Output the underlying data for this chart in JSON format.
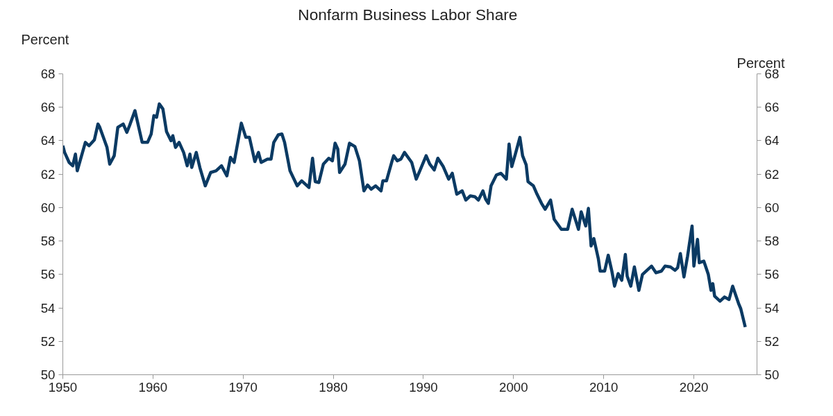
{
  "chart_data": {
    "type": "line",
    "title": "Nonfarm  Business Labor Share",
    "ylabel": "Percent",
    "y2label": "Percent",
    "xlim": [
      1950,
      2027
    ],
    "xticks": [
      1950,
      1960,
      1970,
      1980,
      1990,
      2000,
      2010,
      2020
    ],
    "ylim": [
      50,
      68
    ],
    "yticks": [
      50,
      52,
      54,
      56,
      58,
      60,
      62,
      64,
      66,
      68
    ],
    "y2lim": [
      50,
      68
    ],
    "y2ticks": [
      50,
      52,
      54,
      56,
      58,
      60,
      62,
      64,
      66,
      68
    ],
    "grid": false,
    "marker": "none",
    "line_style": "solid",
    "series": [
      {
        "color": "#0b3a63",
        "x": [
          1950.0,
          1950.2,
          1950.7,
          1951.1,
          1951.4,
          1951.6,
          1952.5,
          1952.9,
          1953.5,
          1953.9,
          1954.1,
          1954.9,
          1955.2,
          1955.7,
          1956.1,
          1956.7,
          1957.1,
          1957.4,
          1958.0,
          1958.8,
          1959.4,
          1959.8,
          1960.1,
          1960.4,
          1960.7,
          1961.1,
          1961.5,
          1962.0,
          1962.2,
          1962.5,
          1962.9,
          1963.4,
          1963.8,
          1964.1,
          1964.3,
          1964.8,
          1965.2,
          1965.8,
          1966.4,
          1967.0,
          1967.6,
          1968.2,
          1968.6,
          1969.0,
          1969.8,
          1970.3,
          1970.7,
          1971.3,
          1971.7,
          1972.0,
          1972.7,
          1973.1,
          1973.4,
          1973.9,
          1974.3,
          1974.6,
          1975.2,
          1976.0,
          1976.5,
          1977.3,
          1977.7,
          1978.0,
          1978.4,
          1978.9,
          1979.5,
          1979.9,
          1980.2,
          1980.5,
          1980.7,
          1981.3,
          1981.8,
          1982.4,
          1982.9,
          1983.4,
          1983.8,
          1984.2,
          1984.7,
          1985.3,
          1985.5,
          1985.9,
          1986.5,
          1986.7,
          1987.1,
          1987.5,
          1987.9,
          1988.7,
          1989.2,
          1989.6,
          1990.3,
          1990.7,
          1991.2,
          1991.6,
          1992.2,
          1992.8,
          1993.2,
          1993.7,
          1994.3,
          1994.7,
          1995.2,
          1995.7,
          1996.1,
          1996.6,
          1996.9,
          1997.2,
          1997.5,
          1998.1,
          1998.6,
          1999.2,
          1999.5,
          1999.8,
          2000.2,
          2000.7,
          2001.0,
          2001.4,
          2001.6,
          2002.2,
          2002.6,
          2003.1,
          2003.5,
          2004.1,
          2004.5,
          2005.3,
          2006.0,
          2006.5,
          2007.2,
          2007.5,
          2008.0,
          2008.3,
          2008.6,
          2008.9,
          2009.4,
          2009.6,
          2010.1,
          2010.5,
          2010.9,
          2011.2,
          2011.6,
          2012.0,
          2012.4,
          2012.6,
          2013.0,
          2013.4,
          2013.9,
          2014.3,
          2014.9,
          2015.3,
          2015.8,
          2016.4,
          2016.8,
          2017.4,
          2017.9,
          2018.2,
          2018.5,
          2018.9,
          2019.3,
          2019.8,
          2020.0,
          2020.4,
          2020.6,
          2021.1,
          2021.6,
          2021.9,
          2022.1,
          2022.3,
          2022.9,
          2023.4,
          2023.9,
          2024.3,
          2025.0,
          2025.2,
          2025.7
        ],
        "values": [
          63.7,
          63.3,
          62.7,
          62.5,
          63.2,
          62.2,
          63.9,
          63.7,
          64.05,
          65.0,
          64.8,
          63.6,
          62.6,
          63.1,
          64.8,
          65.0,
          64.5,
          64.9,
          65.8,
          63.9,
          63.9,
          64.4,
          65.5,
          65.4,
          66.2,
          65.9,
          64.55,
          64.0,
          64.3,
          63.6,
          63.9,
          63.3,
          62.5,
          63.2,
          62.4,
          63.3,
          62.4,
          61.3,
          62.1,
          62.2,
          62.5,
          61.9,
          63.0,
          62.7,
          65.05,
          64.2,
          64.2,
          62.75,
          63.3,
          62.7,
          62.9,
          62.9,
          63.9,
          64.35,
          64.4,
          63.9,
          62.2,
          61.3,
          61.6,
          61.2,
          62.95,
          61.55,
          61.5,
          62.6,
          62.95,
          62.8,
          63.85,
          63.5,
          62.1,
          62.6,
          63.85,
          63.65,
          62.8,
          61.0,
          61.35,
          61.1,
          61.3,
          61.0,
          61.6,
          61.6,
          62.75,
          63.1,
          62.8,
          62.9,
          63.3,
          62.7,
          61.7,
          62.2,
          63.1,
          62.6,
          62.25,
          62.95,
          62.45,
          61.7,
          62.05,
          60.8,
          61.0,
          60.45,
          60.7,
          60.65,
          60.45,
          61.0,
          60.5,
          60.25,
          61.3,
          61.95,
          62.05,
          61.7,
          63.8,
          62.45,
          63.2,
          64.2,
          63.1,
          62.55,
          61.55,
          61.3,
          60.8,
          60.25,
          59.9,
          60.45,
          59.3,
          58.7,
          58.7,
          59.9,
          58.7,
          59.75,
          58.9,
          59.95,
          57.7,
          58.15,
          56.95,
          56.2,
          56.2,
          57.15,
          56.2,
          55.3,
          56.05,
          55.65,
          57.2,
          55.9,
          55.3,
          56.45,
          55.05,
          56.0,
          56.3,
          56.5,
          56.1,
          56.2,
          56.5,
          56.45,
          56.25,
          56.4,
          57.25,
          55.85,
          57.1,
          58.9,
          56.5,
          58.1,
          56.7,
          56.8,
          56.0,
          55.05,
          55.45,
          54.7,
          54.4,
          54.65,
          54.5,
          55.3,
          54.2,
          53.95,
          52.85
        ]
      }
    ]
  }
}
